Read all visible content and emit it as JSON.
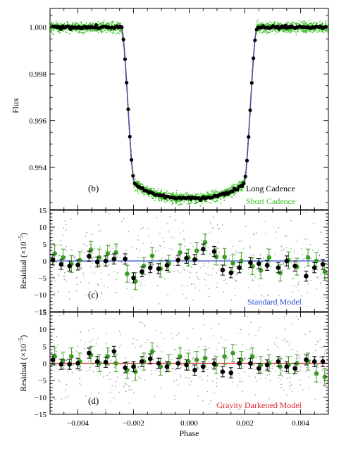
{
  "colors": {
    "black": "#000000",
    "green": "#3a9d23",
    "green_light": "#34c01e",
    "gray": "#9a9a9a",
    "blue_model": "#2f4fd6",
    "red_model": "#e0262c",
    "purple_model": "#6a3fc0"
  },
  "chart_data": [
    {
      "panel": "b",
      "type": "scatter",
      "panel_label": "(b)",
      "ylabel": "Flux",
      "xlim": [
        -0.005,
        0.005
      ],
      "ylim": [
        0.9922,
        1.0008
      ],
      "yticks": [
        0.994,
        0.996,
        0.998,
        1.0
      ],
      "ytick_labels": [
        "0.994",
        "0.996",
        "0.998",
        "1.000"
      ],
      "grid": false,
      "legend_position": "bottom-right",
      "series": [
        {
          "name": "Long Cadence",
          "color": "#000000",
          "marker": "filled circle (binned points)"
        },
        {
          "name": "Short Cadence",
          "color": "#34c01e",
          "marker": "small dots"
        }
      ],
      "transit_model": {
        "depth": 0.0073,
        "ingress_start": -0.00245,
        "ingress_end": -0.00195,
        "egress_start": 0.00195,
        "egress_end": 0.00245,
        "min_flux": 0.99268,
        "line_colors": [
          "#2f4fd6",
          "#e0262c"
        ]
      }
    },
    {
      "panel": "c",
      "type": "scatter",
      "panel_label": "(c)",
      "ylabel": "Residual (×10⁻⁵)",
      "model_label": "Standard Model",
      "model_label_color": "#2f4fd6",
      "xlim": [
        -0.005,
        0.005
      ],
      "ylim": [
        -15,
        15
      ],
      "yticks": [
        -15,
        -10,
        -5,
        0,
        5,
        10,
        15
      ],
      "zero_line_color": "#2f4fd6",
      "x": [
        -0.0049,
        -0.0046,
        -0.0043,
        -0.004,
        -0.0036,
        -0.0033,
        -0.003,
        -0.0027,
        -0.0023,
        -0.002,
        -0.0017,
        -0.0014,
        -0.0011,
        -0.0008,
        -0.0004,
        -0.0001,
        0.0002,
        0.0005,
        0.0009,
        0.0012,
        0.0015,
        0.0018,
        0.0022,
        0.0025,
        0.0028,
        0.0032,
        0.0035,
        0.0038,
        0.0042,
        0.0045,
        0.0048
      ],
      "long_cadence": [
        0.3,
        -1.0,
        -1.5,
        -1.2,
        1.4,
        -0.3,
        0.0,
        0.6,
        0.6,
        -5.0,
        -3.2,
        -2.0,
        -2.3,
        -1.3,
        0.2,
        0.8,
        0.4,
        3.5,
        2.8,
        -2.7,
        -3.5,
        -2.0,
        -0.5,
        -0.8,
        -1.3,
        -2.0,
        0.0,
        -1.5,
        -4.5,
        -2.0,
        -1.0
      ],
      "long_err": [
        1.5,
        1.5,
        1.5,
        1.5,
        1.5,
        1.5,
        1.5,
        1.5,
        1.5,
        1.5,
        1.5,
        1.5,
        1.5,
        1.5,
        1.5,
        1.5,
        1.5,
        1.5,
        1.5,
        1.5,
        1.5,
        1.5,
        1.5,
        1.5,
        1.5,
        1.5,
        1.5,
        1.5,
        1.5,
        1.5,
        1.5
      ],
      "short_cadence": [
        2.2,
        1.0,
        -0.9,
        0.2,
        3.3,
        1.0,
        2.2,
        2.5,
        -3.8,
        -6.0,
        -1.5,
        1.5,
        -2.3,
        -0.8,
        2.5,
        1.0,
        3.0,
        5.5,
        1.3,
        1.2,
        -0.7,
        0.0,
        -1.6,
        -2.8,
        1.0,
        -3.5,
        0.2,
        -1.7,
        1.0,
        0.0,
        -3.2
      ],
      "short_err": [
        2.5,
        2.5,
        2.5,
        2.5,
        2.5,
        2.5,
        2.5,
        2.5,
        2.5,
        2.5,
        2.5,
        2.5,
        2.5,
        2.5,
        2.5,
        2.5,
        2.5,
        2.5,
        2.5,
        2.5,
        2.5,
        2.5,
        2.5,
        2.5,
        2.5,
        2.5,
        2.5,
        2.5,
        2.5,
        2.5,
        2.5
      ]
    },
    {
      "panel": "d",
      "type": "scatter",
      "panel_label": "(d)",
      "ylabel": "Residual (×10⁻⁵)",
      "model_label": "Gravity Darkened Model",
      "model_label_color": "#e0262c",
      "xlim": [
        -0.005,
        0.005
      ],
      "ylim": [
        -15,
        15
      ],
      "yticks": [
        -15,
        -10,
        -5,
        0,
        5,
        10,
        15
      ],
      "xticks": [
        -0.004,
        -0.002,
        0.0,
        0.002,
        0.004
      ],
      "xtick_labels": [
        "−0.004",
        "−0.002",
        "0.000",
        "0.002",
        "0.004"
      ],
      "xlabel": "Phase",
      "zero_line_color": "#e0262c",
      "x": [
        -0.0049,
        -0.0046,
        -0.0043,
        -0.004,
        -0.0036,
        -0.0033,
        -0.003,
        -0.0027,
        -0.0023,
        -0.002,
        -0.0017,
        -0.0014,
        -0.0011,
        -0.0008,
        -0.0004,
        -0.0001,
        0.0002,
        0.0005,
        0.0009,
        0.0012,
        0.0015,
        0.0018,
        0.0022,
        0.0025,
        0.0028,
        0.0032,
        0.0035,
        0.0038,
        0.0042,
        0.0045,
        0.0048
      ],
      "long_cadence": [
        1.0,
        -0.3,
        -0.3,
        0.0,
        3.0,
        0.5,
        0.3,
        3.5,
        -1.3,
        -1.0,
        0.5,
        1.3,
        0.0,
        -1.0,
        0.0,
        -0.5,
        -2.0,
        -1.0,
        -0.2,
        -2.5,
        -2.8,
        0.0,
        0.0,
        -1.5,
        -0.5,
        0.5,
        -1.0,
        -1.5,
        1.0,
        0.5,
        0.5
      ],
      "long_err": [
        1.5,
        1.5,
        1.5,
        1.5,
        1.5,
        1.5,
        1.5,
        1.5,
        1.5,
        1.5,
        1.5,
        1.5,
        1.5,
        1.5,
        1.5,
        1.5,
        1.5,
        1.5,
        1.5,
        1.5,
        1.5,
        1.5,
        1.5,
        1.5,
        1.5,
        1.5,
        1.5,
        1.5,
        1.5,
        1.5,
        1.5
      ],
      "short_cadence": [
        2.0,
        0.8,
        2.0,
        0.5,
        2.5,
        0.0,
        2.0,
        0.0,
        -2.0,
        -2.5,
        0.5,
        3.5,
        -1.0,
        0.0,
        2.0,
        0.5,
        1.0,
        1.5,
        -0.5,
        2.0,
        3.0,
        1.0,
        2.0,
        -0.5,
        0.0,
        -1.0,
        -0.5,
        0.0,
        0.5,
        -3.0,
        -4.0
      ],
      "short_err": [
        2.5,
        2.5,
        2.5,
        2.5,
        2.5,
        2.5,
        2.5,
        2.5,
        2.5,
        2.5,
        2.5,
        2.5,
        2.5,
        2.5,
        2.5,
        2.5,
        2.5,
        2.5,
        2.5,
        2.5,
        2.5,
        2.5,
        2.5,
        2.5,
        2.5,
        2.5,
        2.5,
        2.5,
        2.5,
        2.5,
        2.5
      ]
    }
  ]
}
